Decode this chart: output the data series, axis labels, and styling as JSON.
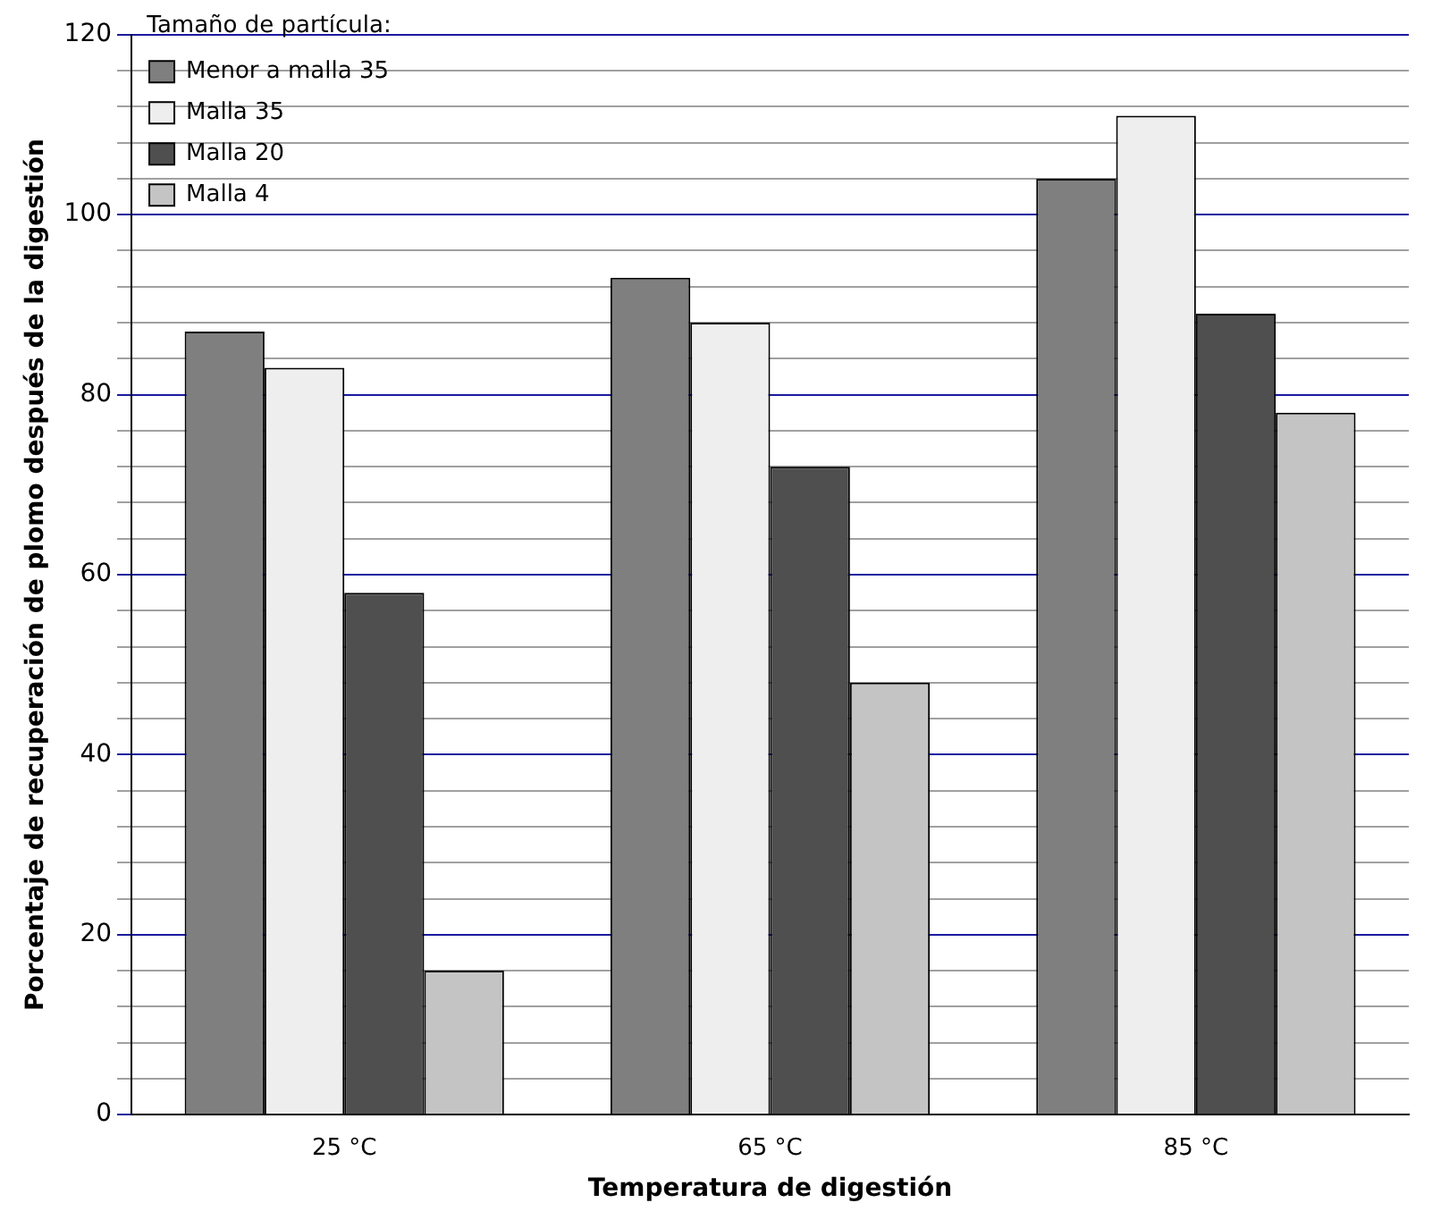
{
  "chart_data": {
    "type": "bar",
    "xlabel": "Temperatura de digestión",
    "ylabel": "Porcentaje de recuperación de plomo después de la digestión",
    "legend_title": "Tamaño de partícula:",
    "categories": [
      "25 °C",
      "65 °C",
      "85 °C"
    ],
    "series": [
      {
        "name": "Menor a malla 35",
        "color": "#7f7f7f",
        "values": [
          87,
          93,
          104
        ]
      },
      {
        "name": "Malla 35",
        "color": "#eeeeee",
        "values": [
          83,
          88,
          111
        ]
      },
      {
        "name": "Malla 20",
        "color": "#4f4f4f",
        "values": [
          58,
          72,
          89
        ]
      },
      {
        "name": "Malla 4",
        "color": "#c4c4c4",
        "values": [
          16,
          48,
          78
        ]
      }
    ],
    "ylim": [
      0,
      120
    ],
    "yticks": [
      0,
      {
        "value": 4,
        "label": null
      },
      {
        "value": 8,
        "label": null
      },
      {
        "value": 12,
        "label": null
      },
      {
        "value": 16,
        "label": null
      },
      20,
      {
        "value": 24,
        "label": null
      },
      {
        "value": 28,
        "label": null
      },
      {
        "value": 32,
        "label": null
      },
      {
        "value": 36,
        "label": null
      },
      40,
      {
        "value": 44,
        "label": null
      },
      {
        "value": 48,
        "label": null
      },
      {
        "value": 52,
        "label": null
      },
      {
        "value": 56,
        "label": null
      },
      60,
      {
        "value": 64,
        "label": null
      },
      {
        "value": 68,
        "label": null
      },
      {
        "value": 72,
        "label": null
      },
      {
        "value": 76,
        "label": null
      },
      80,
      {
        "value": 84,
        "label": null
      },
      {
        "value": 88,
        "label": null
      },
      {
        "value": 92,
        "label": null
      },
      {
        "value": 96,
        "label": null
      },
      100,
      {
        "value": 104,
        "label": null
      },
      {
        "value": 108,
        "label": null
      },
      {
        "value": 112,
        "label": null
      },
      {
        "value": 116,
        "label": null
      },
      120
    ],
    "grid": "y",
    "legend": "top left"
  }
}
